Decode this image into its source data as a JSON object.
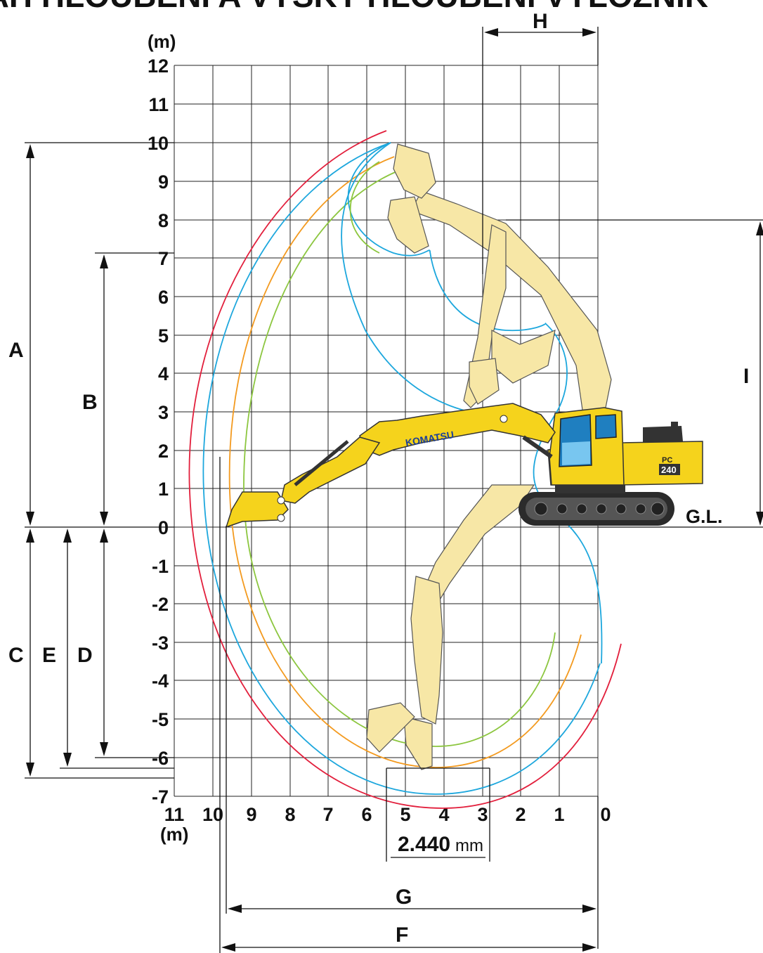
{
  "title": "DOSAH HLOUBENÍ A VÝŠKY HLOUBENÍ VÝLOŽNÍK",
  "axes": {
    "y_unit": "(m)",
    "x_unit": "(m)",
    "y_ticks": [
      "12",
      "11",
      "10",
      "9",
      "8",
      "7",
      "6",
      "5",
      "4",
      "3",
      "2",
      "1",
      "0",
      "-1",
      "-2",
      "-3",
      "-4",
      "-5",
      "-6",
      "-7"
    ],
    "x_ticks": [
      "11",
      "10",
      "9",
      "8",
      "7",
      "6",
      "5",
      "4",
      "3",
      "2",
      "1",
      "0"
    ]
  },
  "dimensions": {
    "A": "A",
    "B": "B",
    "C": "C",
    "D": "D",
    "E": "E",
    "F": "F",
    "G": "G",
    "H": "H",
    "I": "I"
  },
  "ground_level": "G.L.",
  "width_value": "2.440",
  "width_unit": "mm",
  "machine": {
    "brand": "KOMATSU",
    "model_prefix": "PC",
    "model_number": "240"
  },
  "colors": {
    "envelope_red": "#e21f3c",
    "envelope_blue": "#1da7dd",
    "envelope_orange": "#f39a1f",
    "envelope_green": "#8cc63f",
    "machine_yellow": "#f5d31c",
    "ghost_yellow": "#f7e7a6",
    "track_dark": "#2b2b2b"
  }
}
